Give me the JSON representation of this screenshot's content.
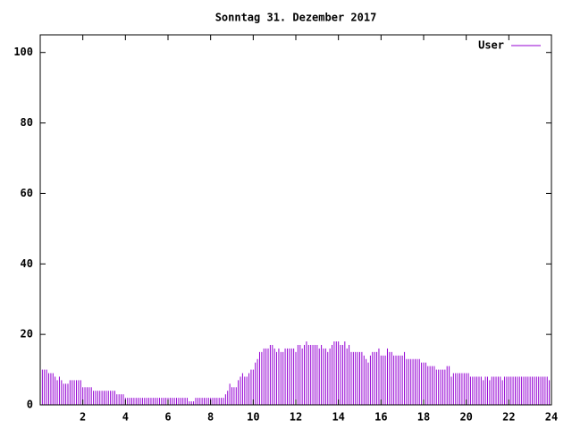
{
  "chart_data": {
    "type": "impulse",
    "title": "Sonntag 31. Dezember 2017",
    "xlim": [
      0,
      24
    ],
    "xticks": [
      2,
      4,
      6,
      8,
      10,
      12,
      14,
      16,
      18,
      20,
      22,
      24
    ],
    "ylim": [
      0,
      105
    ],
    "yticks": [
      0,
      20,
      40,
      60,
      80,
      100
    ],
    "legend": "top-right",
    "x": [
      0,
      0.1,
      0.2,
      0.3,
      0.4,
      0.5,
      0.6,
      0.7,
      0.8,
      0.9,
      1,
      1.1,
      1.2,
      1.3,
      1.4,
      1.5,
      1.6,
      1.7,
      1.8,
      1.9,
      2,
      2.1,
      2.2,
      2.3,
      2.4,
      2.5,
      2.6,
      2.7,
      2.8,
      2.9,
      3,
      3.1,
      3.2,
      3.3,
      3.4,
      3.5,
      3.6,
      3.7,
      3.8,
      3.9,
      4,
      4.1,
      4.2,
      4.3,
      4.4,
      4.5,
      4.6,
      4.7,
      4.8,
      4.9,
      5,
      5.1,
      5.2,
      5.3,
      5.4,
      5.5,
      5.6,
      5.7,
      5.8,
      5.9,
      6,
      6.1,
      6.2,
      6.3,
      6.4,
      6.5,
      6.6,
      6.7,
      6.8,
      6.9,
      7,
      7.1,
      7.2,
      7.3,
      7.4,
      7.5,
      7.6,
      7.7,
      7.8,
      7.9,
      8,
      8.1,
      8.2,
      8.3,
      8.4,
      8.5,
      8.6,
      8.7,
      8.8,
      8.9,
      9,
      9.1,
      9.2,
      9.3,
      9.4,
      9.5,
      9.6,
      9.7,
      9.8,
      9.9,
      10,
      10.1,
      10.2,
      10.3,
      10.4,
      10.5,
      10.6,
      10.7,
      10.8,
      10.9,
      11,
      11.1,
      11.2,
      11.3,
      11.4,
      11.5,
      11.6,
      11.7,
      11.8,
      11.9,
      12,
      12.1,
      12.2,
      12.3,
      12.4,
      12.5,
      12.6,
      12.7,
      12.8,
      12.9,
      13,
      13.1,
      13.2,
      13.3,
      13.4,
      13.5,
      13.6,
      13.7,
      13.8,
      13.9,
      14,
      14.1,
      14.2,
      14.3,
      14.4,
      14.5,
      14.6,
      14.7,
      14.8,
      14.9,
      15,
      15.1,
      15.2,
      15.3,
      15.4,
      15.5,
      15.6,
      15.7,
      15.8,
      15.9,
      16,
      16.1,
      16.2,
      16.3,
      16.4,
      16.5,
      16.6,
      16.7,
      16.8,
      16.9,
      17,
      17.1,
      17.2,
      17.3,
      17.4,
      17.5,
      17.6,
      17.7,
      17.8,
      17.9,
      18,
      18.1,
      18.2,
      18.3,
      18.4,
      18.5,
      18.6,
      18.7,
      18.8,
      18.9,
      19,
      19.1,
      19.2,
      19.3,
      19.4,
      19.5,
      19.6,
      19.7,
      19.8,
      19.9,
      20,
      20.1,
      20.2,
      20.3,
      20.4,
      20.5,
      20.6,
      20.7,
      20.8,
      20.9,
      21,
      21.1,
      21.2,
      21.3,
      21.4,
      21.5,
      21.6,
      21.7,
      21.8,
      21.9,
      22,
      22.1,
      22.2,
      22.3,
      22.4,
      22.5,
      22.6,
      22.7,
      22.8,
      22.9,
      23,
      23.1,
      23.2,
      23.3,
      23.4,
      23.5,
      23.6,
      23.7,
      23.8,
      23.9
    ],
    "series": [
      {
        "name": "User",
        "color": "#9400d3",
        "values": [
          11,
          10,
          10,
          10,
          9,
          9,
          9,
          8,
          7,
          8,
          7,
          6,
          6,
          6,
          7,
          7,
          7,
          7,
          7,
          7,
          5,
          5,
          5,
          5,
          5,
          4,
          4,
          4,
          4,
          4,
          4,
          4,
          4,
          4,
          4,
          4,
          3,
          3,
          3,
          3,
          2,
          2,
          2,
          2,
          2,
          2,
          2,
          2,
          2,
          2,
          2,
          2,
          2,
          2,
          2,
          2,
          2,
          2,
          2,
          2,
          2,
          2,
          2,
          2,
          2,
          2,
          2,
          2,
          2,
          2,
          1,
          1,
          1,
          2,
          2,
          2,
          2,
          2,
          2,
          2,
          2,
          2,
          2,
          2,
          2,
          2,
          2,
          3,
          4,
          6,
          5,
          5,
          5,
          7,
          8,
          9,
          8,
          8,
          9,
          10,
          10,
          12,
          13,
          15,
          15,
          16,
          16,
          16,
          17,
          17,
          16,
          15,
          16,
          15,
          15,
          16,
          16,
          16,
          16,
          16,
          15,
          17,
          17,
          16,
          17,
          18,
          17,
          17,
          17,
          17,
          17,
          16,
          17,
          16,
          16,
          15,
          16,
          17,
          18,
          18,
          18,
          17,
          17,
          18,
          16,
          17,
          15,
          15,
          15,
          15,
          15,
          15,
          14,
          13,
          12,
          14,
          15,
          15,
          15,
          16,
          14,
          14,
          14,
          16,
          15,
          15,
          14,
          14,
          14,
          14,
          14,
          15,
          13,
          13,
          13,
          13,
          13,
          13,
          13,
          12,
          12,
          12,
          11,
          11,
          11,
          11,
          10,
          10,
          10,
          10,
          10,
          11,
          11,
          8,
          9,
          9,
          9,
          9,
          9,
          9,
          9,
          9,
          8,
          8,
          8,
          8,
          8,
          8,
          7,
          8,
          8,
          7,
          8,
          8,
          8,
          8,
          8,
          7,
          8,
          8,
          8,
          8,
          8,
          8,
          8,
          8,
          8,
          8,
          8,
          8,
          8,
          8,
          8,
          8,
          8,
          8,
          8,
          8,
          8,
          7
        ]
      }
    ]
  }
}
